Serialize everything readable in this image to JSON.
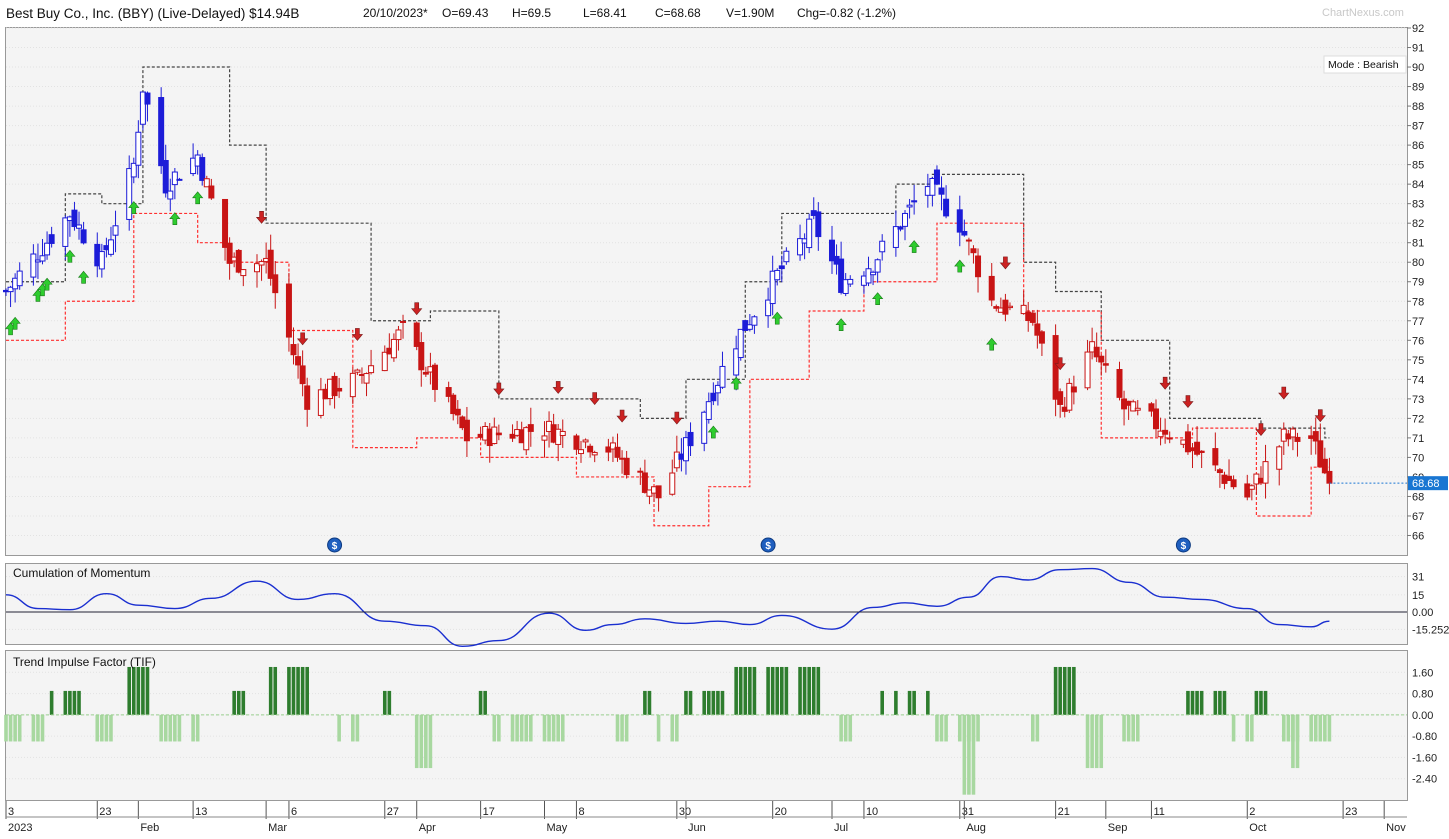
{
  "header": {
    "title": "Best Buy Co., Inc. (BBY) (Live-Delayed) $14.94B",
    "date": "20/10/2023*",
    "open": "O=69.43",
    "high": "H=69.5",
    "low": "L=68.41",
    "close": "C=68.68",
    "volume": "V=1.90M",
    "change": "Chg=-0.82 (-1.2%)",
    "watermark": "ChartNexus.com"
  },
  "mode_label": "Mode : Bearish",
  "price_label": "68.68",
  "momentum_title": "Cumulation of Momentum",
  "tif_title": "Trend Impulse Factor (TIF)",
  "colors": {
    "bull": "#1c1cd8",
    "bear": "#c81414",
    "stop_upper": "#444444",
    "stop_lower": "#ff3030",
    "tif_pos": "#2e7d2e",
    "tif_neg": "#a8d8a0",
    "momentum": "#1a2fd0",
    "arrow_up": "#2ecc2e",
    "arrow_down": "#cc2222",
    "price_tag": "#1976d2"
  },
  "chart_data": [
    {
      "type": "candlestick",
      "name": "Price",
      "ylim": [
        65,
        92
      ],
      "yticks": [
        66,
        67,
        68,
        69,
        70,
        71,
        72,
        73,
        74,
        75,
        76,
        77,
        78,
        79,
        80,
        81,
        82,
        83,
        84,
        85,
        86,
        87,
        88,
        89,
        90,
        91,
        92
      ],
      "last_close": 68.68,
      "ohlc_anchors": [
        {
          "date": "2023-01-03",
          "close": 78.5
        },
        {
          "date": "2023-01-10",
          "close": 80.5
        },
        {
          "date": "2023-01-17",
          "close": 82.5
        },
        {
          "date": "2023-01-24",
          "close": 80.0
        },
        {
          "date": "2023-01-31",
          "close": 85.0
        },
        {
          "date": "2023-02-02",
          "close": 89.0
        },
        {
          "date": "2023-02-07",
          "close": 84.0
        },
        {
          "date": "2023-02-14",
          "close": 85.5
        },
        {
          "date": "2023-02-21",
          "close": 80.0
        },
        {
          "date": "2023-03-01",
          "close": 80.0
        },
        {
          "date": "2023-03-10",
          "close": 73.0
        },
        {
          "date": "2023-03-21",
          "close": 74.0
        },
        {
          "date": "2023-03-31",
          "close": 76.5
        },
        {
          "date": "2023-04-14",
          "close": 71.0
        },
        {
          "date": "2023-05-01",
          "close": 71.5
        },
        {
          "date": "2023-05-15",
          "close": 70.5
        },
        {
          "date": "2023-05-26",
          "close": 68.0
        },
        {
          "date": "2023-06-02",
          "close": 71.0
        },
        {
          "date": "2023-06-12",
          "close": 76.0
        },
        {
          "date": "2023-06-20",
          "close": 79.0
        },
        {
          "date": "2023-06-29",
          "close": 82.0
        },
        {
          "date": "2023-07-05",
          "close": 79.0
        },
        {
          "date": "2023-07-12",
          "close": 80.0
        },
        {
          "date": "2023-07-24",
          "close": 84.0
        },
        {
          "date": "2023-07-31",
          "close": 82.0
        },
        {
          "date": "2023-08-07",
          "close": 78.0
        },
        {
          "date": "2023-08-16",
          "close": 77.0
        },
        {
          "date": "2023-08-22",
          "close": 72.5
        },
        {
          "date": "2023-08-29",
          "close": 75.5
        },
        {
          "date": "2023-09-05",
          "close": 72.5
        },
        {
          "date": "2023-09-14",
          "close": 71.5
        },
        {
          "date": "2023-09-22",
          "close": 70.0
        },
        {
          "date": "2023-10-02",
          "close": 68.0
        },
        {
          "date": "2023-10-10",
          "close": 71.0
        },
        {
          "date": "2023-10-16",
          "close": 71.0
        },
        {
          "date": "2023-10-20",
          "close": 68.68
        }
      ],
      "upper_stop": [
        {
          "date": "2023-01-03",
          "value": 79.0
        },
        {
          "date": "2023-01-16",
          "value": 83.5
        },
        {
          "date": "2023-01-24",
          "value": 83.0
        },
        {
          "date": "2023-02-02",
          "value": 90.0
        },
        {
          "date": "2023-02-21",
          "value": 86.0
        },
        {
          "date": "2023-03-01",
          "value": 82.0
        },
        {
          "date": "2023-03-24",
          "value": 77.0
        },
        {
          "date": "2023-04-06",
          "value": 77.5
        },
        {
          "date": "2023-04-21",
          "value": 73.0
        },
        {
          "date": "2023-05-08",
          "value": 73.0
        },
        {
          "date": "2023-05-22",
          "value": 72.0
        },
        {
          "date": "2023-06-01",
          "value": 74.0
        },
        {
          "date": "2023-06-14",
          "value": 79.0
        },
        {
          "date": "2023-06-22",
          "value": 82.5
        },
        {
          "date": "2023-07-17",
          "value": 84.0
        },
        {
          "date": "2023-07-25",
          "value": 84.5
        },
        {
          "date": "2023-08-14",
          "value": 80.0
        },
        {
          "date": "2023-08-21",
          "value": 78.5
        },
        {
          "date": "2023-08-31",
          "value": 76.0
        },
        {
          "date": "2023-09-15",
          "value": 72.0
        },
        {
          "date": "2023-10-05",
          "value": 71.5
        },
        {
          "date": "2023-10-19",
          "value": 71.0
        }
      ],
      "lower_stop": [
        {
          "date": "2023-01-03",
          "value": 76.0
        },
        {
          "date": "2023-01-16",
          "value": 78.0
        },
        {
          "date": "2023-01-31",
          "value": 82.5
        },
        {
          "date": "2023-02-14",
          "value": 81.0
        },
        {
          "date": "2023-02-21",
          "value": 80.0
        },
        {
          "date": "2023-03-06",
          "value": 76.5
        },
        {
          "date": "2023-03-20",
          "value": 70.5
        },
        {
          "date": "2023-04-03",
          "value": 71.0
        },
        {
          "date": "2023-04-17",
          "value": 70.0
        },
        {
          "date": "2023-05-08",
          "value": 69.0
        },
        {
          "date": "2023-05-25",
          "value": 66.5
        },
        {
          "date": "2023-06-06",
          "value": 68.5
        },
        {
          "date": "2023-06-15",
          "value": 74.0
        },
        {
          "date": "2023-06-28",
          "value": 77.5
        },
        {
          "date": "2023-07-10",
          "value": 79.0
        },
        {
          "date": "2023-07-26",
          "value": 82.0
        },
        {
          "date": "2023-08-14",
          "value": 77.5
        },
        {
          "date": "2023-08-31",
          "value": 71.0
        },
        {
          "date": "2023-09-20",
          "value": 71.5
        },
        {
          "date": "2023-10-04",
          "value": 67.0
        },
        {
          "date": "2023-10-16",
          "value": 69.5
        }
      ],
      "buy_signal_dates": [
        "2023-01-04",
        "2023-01-05",
        "2023-01-10",
        "2023-01-11",
        "2023-01-12",
        "2023-01-17",
        "2023-01-20",
        "2023-01-31",
        "2023-02-09",
        "2023-02-14",
        "2023-06-07",
        "2023-06-12",
        "2023-06-21",
        "2023-07-05",
        "2023-07-13",
        "2023-07-21",
        "2023-07-31",
        "2023-08-07"
      ],
      "sell_signal_dates": [
        "2023-02-28",
        "2023-03-09",
        "2023-03-21",
        "2023-04-03",
        "2023-04-21",
        "2023-05-04",
        "2023-05-12",
        "2023-05-18",
        "2023-05-30",
        "2023-08-10",
        "2023-08-22",
        "2023-09-14",
        "2023-09-19",
        "2023-10-05",
        "2023-10-10",
        "2023-10-18"
      ],
      "dividend_dates": [
        "2023-03-16",
        "2023-06-19",
        "2023-09-18"
      ],
      "x_ticks": [
        {
          "date": "2023-01-03",
          "day": "3",
          "month": "2023"
        },
        {
          "date": "2023-01-23",
          "day": "23",
          "month": ""
        },
        {
          "date": "2023-02-01",
          "day": "",
          "month": "Feb"
        },
        {
          "date": "2023-02-13",
          "day": "13",
          "month": ""
        },
        {
          "date": "2023-03-01",
          "day": "",
          "month": "Mar"
        },
        {
          "date": "2023-03-06",
          "day": "6",
          "month": ""
        },
        {
          "date": "2023-03-27",
          "day": "27",
          "month": ""
        },
        {
          "date": "2023-04-03",
          "day": "",
          "month": "Apr"
        },
        {
          "date": "2023-04-17",
          "day": "17",
          "month": ""
        },
        {
          "date": "2023-05-01",
          "day": "",
          "month": "May"
        },
        {
          "date": "2023-05-08",
          "day": "8",
          "month": ""
        },
        {
          "date": "2023-05-30",
          "day": "30",
          "month": ""
        },
        {
          "date": "2023-06-01",
          "day": "",
          "month": "Jun"
        },
        {
          "date": "2023-06-20",
          "day": "20",
          "month": ""
        },
        {
          "date": "2023-07-03",
          "day": "",
          "month": "Jul"
        },
        {
          "date": "2023-07-10",
          "day": "10",
          "month": ""
        },
        {
          "date": "2023-07-31",
          "day": "31",
          "month": ""
        },
        {
          "date": "2023-08-01",
          "day": "",
          "month": "Aug"
        },
        {
          "date": "2023-08-21",
          "day": "21",
          "month": ""
        },
        {
          "date": "2023-09-01",
          "day": "",
          "month": "Sep"
        },
        {
          "date": "2023-09-11",
          "day": "11",
          "month": ""
        },
        {
          "date": "2023-10-02",
          "day": "2",
          "month": "Oct"
        },
        {
          "date": "2023-10-23",
          "day": "23",
          "month": ""
        },
        {
          "date": "2023-11-01",
          "day": "",
          "month": "Nov"
        }
      ]
    },
    {
      "type": "line",
      "name": "Cumulation of Momentum",
      "ylim": [
        -28,
        42
      ],
      "yticks": [
        {
          "value": 31,
          "label": "31"
        },
        {
          "value": 15,
          "label": "15"
        },
        {
          "value": 0,
          "label": "0.00"
        },
        {
          "value": -15.252,
          "label": "-15.252"
        }
      ],
      "points": [
        {
          "date": "2023-01-03",
          "value": 15
        },
        {
          "date": "2023-01-10",
          "value": 3
        },
        {
          "date": "2023-01-17",
          "value": 2
        },
        {
          "date": "2023-01-25",
          "value": 16
        },
        {
          "date": "2023-02-01",
          "value": 6
        },
        {
          "date": "2023-02-09",
          "value": 3
        },
        {
          "date": "2023-02-17",
          "value": 12
        },
        {
          "date": "2023-02-27",
          "value": 27
        },
        {
          "date": "2023-03-08",
          "value": 11
        },
        {
          "date": "2023-03-16",
          "value": 16
        },
        {
          "date": "2023-03-27",
          "value": -8
        },
        {
          "date": "2023-04-05",
          "value": -12
        },
        {
          "date": "2023-04-13",
          "value": -30
        },
        {
          "date": "2023-04-21",
          "value": -25
        },
        {
          "date": "2023-05-02",
          "value": -1
        },
        {
          "date": "2023-05-10",
          "value": -16
        },
        {
          "date": "2023-05-16",
          "value": -11
        },
        {
          "date": "2023-05-23",
          "value": -6
        },
        {
          "date": "2023-06-01",
          "value": -10
        },
        {
          "date": "2023-06-08",
          "value": -8
        },
        {
          "date": "2023-06-15",
          "value": -11
        },
        {
          "date": "2023-06-22",
          "value": -3
        },
        {
          "date": "2023-07-03",
          "value": -15
        },
        {
          "date": "2023-07-12",
          "value": 4
        },
        {
          "date": "2023-07-19",
          "value": 8
        },
        {
          "date": "2023-07-26",
          "value": 5
        },
        {
          "date": "2023-08-02",
          "value": 13
        },
        {
          "date": "2023-08-09",
          "value": 31
        },
        {
          "date": "2023-08-15",
          "value": 28
        },
        {
          "date": "2023-08-22",
          "value": 37
        },
        {
          "date": "2023-08-29",
          "value": 38
        },
        {
          "date": "2023-09-06",
          "value": 26
        },
        {
          "date": "2023-09-14",
          "value": 13
        },
        {
          "date": "2023-09-22",
          "value": 11
        },
        {
          "date": "2023-10-02",
          "value": 3
        },
        {
          "date": "2023-10-09",
          "value": -11
        },
        {
          "date": "2023-10-16",
          "value": -13
        },
        {
          "date": "2023-10-20",
          "value": -8
        }
      ]
    },
    {
      "type": "bar",
      "name": "Trend Impulse Factor (TIF)",
      "ylim": [
        -3.2,
        2.4
      ],
      "yticks": [
        1.6,
        0.8,
        0.0,
        -0.8,
        -1.6,
        -2.4
      ],
      "ytick_labels": [
        "1.60",
        "0.80",
        "0.00",
        "-0.80",
        "-1.60",
        "-2.40"
      ],
      "runs": [
        {
          "start": "2023-01-03",
          "end": "2023-01-11",
          "value": -1.0
        },
        {
          "start": "2023-01-13",
          "end": "2023-01-19",
          "value": 0.9
        },
        {
          "start": "2023-01-23",
          "end": "2023-01-26",
          "value": -1.0
        },
        {
          "start": "2023-01-30",
          "end": "2023-02-03",
          "value": 1.8
        },
        {
          "start": "2023-02-06",
          "end": "2023-02-14",
          "value": -1.0
        },
        {
          "start": "2023-02-22",
          "end": "2023-02-24",
          "value": 0.9
        },
        {
          "start": "2023-03-02",
          "end": "2023-03-10",
          "value": 1.8
        },
        {
          "start": "2023-03-17",
          "end": "2023-03-21",
          "value": -1.0
        },
        {
          "start": "2023-03-27",
          "end": "2023-03-28",
          "value": 0.9
        },
        {
          "start": "2023-04-03",
          "end": "2023-04-06",
          "value": -2.0
        },
        {
          "start": "2023-04-17",
          "end": "2023-04-18",
          "value": 0.9
        },
        {
          "start": "2023-04-20",
          "end": "2023-05-05",
          "value": -1.0
        },
        {
          "start": "2023-05-17",
          "end": "2023-05-19",
          "value": -1.0
        },
        {
          "start": "2023-05-23",
          "end": "2023-05-24",
          "value": 0.9
        },
        {
          "start": "2023-05-26",
          "end": "2023-05-30",
          "value": -1.0
        },
        {
          "start": "2023-06-01",
          "end": "2023-06-09",
          "value": 0.9
        },
        {
          "start": "2023-06-12",
          "end": "2023-06-30",
          "value": 1.8
        },
        {
          "start": "2023-07-05",
          "end": "2023-07-07",
          "value": -1.0
        },
        {
          "start": "2023-07-14",
          "end": "2023-07-17",
          "value": 0.9
        },
        {
          "start": "2023-07-20",
          "end": "2023-07-24",
          "value": 0.9
        },
        {
          "start": "2023-07-26",
          "end": "2023-08-04",
          "value": -1.0
        },
        {
          "start": "2023-08-01",
          "end": "2023-08-03",
          "value": -3.0
        },
        {
          "start": "2023-08-16",
          "end": "2023-08-17",
          "value": -1.0
        },
        {
          "start": "2023-08-21",
          "end": "2023-08-25",
          "value": 1.8
        },
        {
          "start": "2023-08-28",
          "end": "2023-08-31",
          "value": -2.0
        },
        {
          "start": "2023-09-05",
          "end": "2023-09-08",
          "value": -1.0
        },
        {
          "start": "2023-09-19",
          "end": "2023-09-27",
          "value": 0.9
        },
        {
          "start": "2023-09-29",
          "end": "2023-10-03",
          "value": -1.0
        },
        {
          "start": "2023-10-04",
          "end": "2023-10-06",
          "value": 0.9
        },
        {
          "start": "2023-10-10",
          "end": "2023-10-20",
          "value": -1.0
        },
        {
          "start": "2023-10-12",
          "end": "2023-10-13",
          "value": -2.0
        }
      ]
    }
  ]
}
